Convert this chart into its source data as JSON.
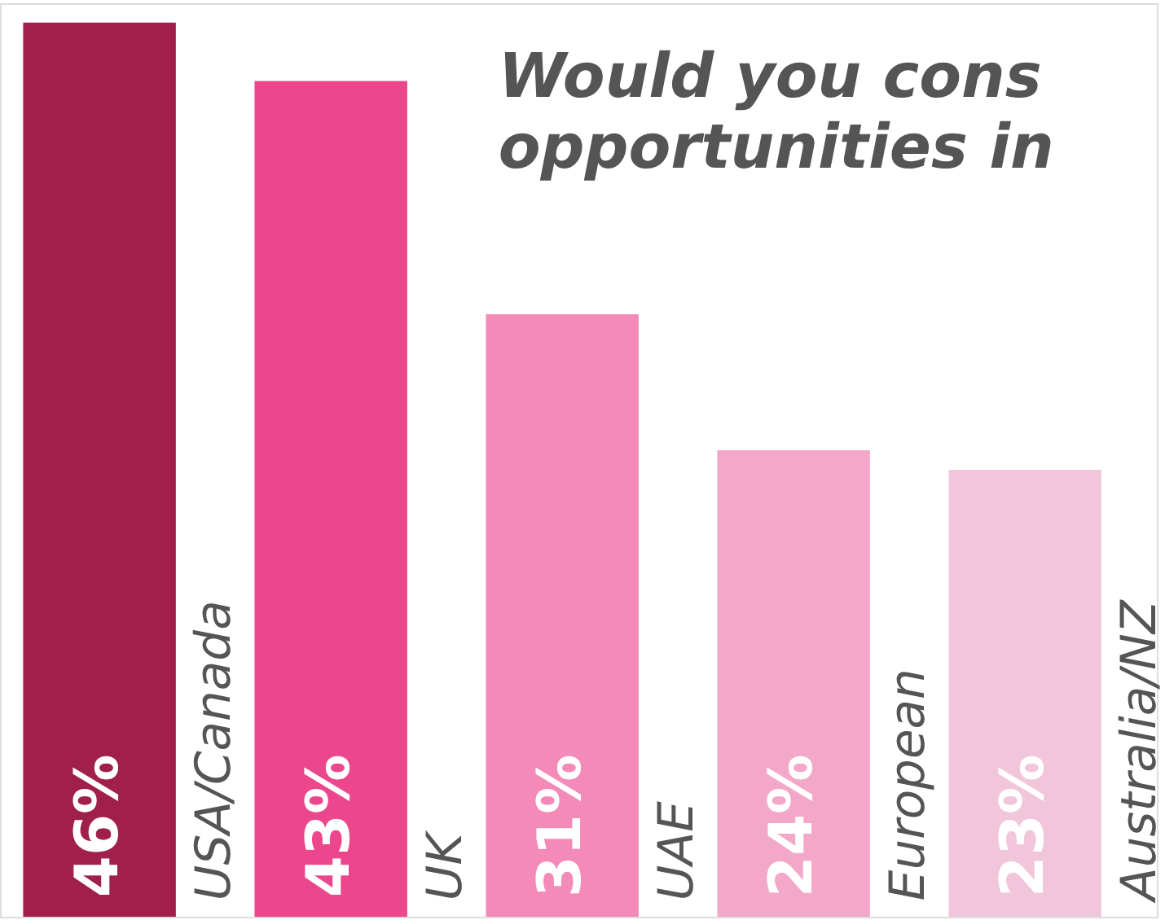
{
  "chart_data": {
    "type": "bar",
    "title": "Would you cons\nopportunities in",
    "categories": [
      "USA/Canada",
      "UK",
      "UAE",
      "European",
      "Australia/NZ"
    ],
    "values": [
      46,
      43,
      31,
      24,
      23
    ],
    "colors": [
      "#a01f4b",
      "#ec468c",
      "#f38ab8",
      "#f4a8c9",
      "#f2c6da"
    ],
    "value_labels": [
      "46%",
      "43%",
      "31%",
      "24%",
      "23%"
    ]
  }
}
